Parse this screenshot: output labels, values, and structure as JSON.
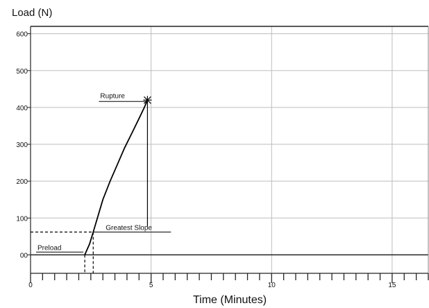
{
  "chart_data": {
    "type": "line",
    "ylabel": "Load (N)",
    "xlabel": "Time (Minutes)",
    "xlim": [
      0,
      16.5
    ],
    "ylim": [
      -50,
      620
    ],
    "x_ticks": [
      0,
      5,
      10,
      15
    ],
    "x_tick_labels": [
      "0",
      "5",
      "10",
      "15"
    ],
    "x_minor_tick_step": 0.5,
    "y_ticks": [
      0,
      100,
      200,
      300,
      400,
      500,
      600
    ],
    "y_tick_labels": [
      "00",
      "100",
      "200",
      "300",
      "400",
      "500",
      "600"
    ],
    "grid": true,
    "series": [
      {
        "x": [
          2.25,
          2.45,
          2.6,
          2.75,
          3.0,
          3.3,
          3.6,
          3.9,
          4.2,
          4.5,
          4.72,
          4.85
        ],
        "y": [
          0,
          30,
          62,
          95,
          150,
          200,
          245,
          290,
          330,
          370,
          400,
          420
        ]
      }
    ],
    "annotations": [
      {
        "label": "Rupture",
        "x": 4.85,
        "y": 420,
        "marker": "asterisk"
      },
      {
        "label": "Greatest Slope",
        "x": 2.6,
        "y": 62
      },
      {
        "label": "Preload",
        "x": 2.25,
        "y": 0
      }
    ]
  }
}
